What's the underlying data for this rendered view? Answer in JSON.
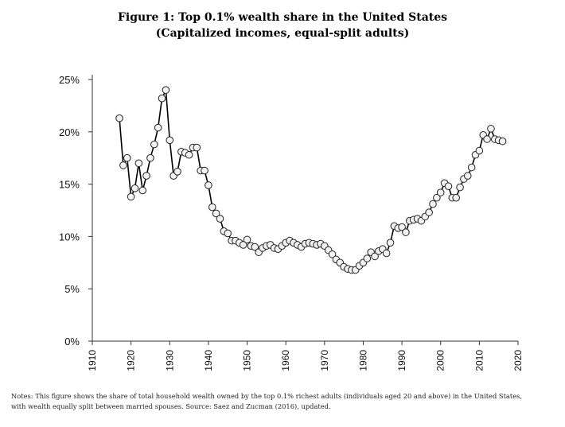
{
  "figure": {
    "title": "Figure 1: Top 0.1% wealth share in the United States",
    "subtitle": "(Capitalized incomes, equal-split adults)",
    "notes_line1": "Notes: This figure shows the share of total household wealth owned by the top 0.1% richest adults (individuals aged 20 and above) in the United States,",
    "notes_line2": "with wealth equally split between married spouses. Source: Saez and Zucman (2016), updated."
  },
  "chart_data": {
    "type": "line",
    "title": "Figure 1: Top 0.1% wealth share in the United States",
    "subtitle": "(Capitalized incomes, equal-split adults)",
    "xlabel": "",
    "ylabel": "",
    "xlim": [
      1910,
      2020
    ],
    "ylim": [
      0,
      25
    ],
    "x_ticks": [
      1910,
      1920,
      1930,
      1940,
      1950,
      1960,
      1970,
      1980,
      1990,
      2000,
      2010,
      2020
    ],
    "y_ticks": [
      0,
      5,
      10,
      15,
      20,
      25
    ],
    "y_tick_labels": [
      "0%",
      "5%",
      "10%",
      "15%",
      "20%",
      "25%"
    ],
    "grid": false,
    "legend": "none",
    "series": [
      {
        "name": "Top 0.1% wealth share",
        "x": [
          1917,
          1918,
          1919,
          1920,
          1921,
          1922,
          1923,
          1924,
          1925,
          1926,
          1927,
          1928,
          1929,
          1930,
          1931,
          1932,
          1933,
          1934,
          1935,
          1936,
          1937,
          1938,
          1939,
          1940,
          1941,
          1942,
          1943,
          1944,
          1945,
          1946,
          1947,
          1948,
          1949,
          1950,
          1951,
          1952,
          1953,
          1954,
          1955,
          1956,
          1957,
          1958,
          1959,
          1960,
          1961,
          1962,
          1963,
          1964,
          1965,
          1966,
          1967,
          1968,
          1969,
          1970,
          1971,
          1972,
          1973,
          1974,
          1975,
          1976,
          1977,
          1978,
          1979,
          1980,
          1981,
          1982,
          1983,
          1984,
          1985,
          1986,
          1987,
          1988,
          1989,
          1990,
          1991,
          1992,
          1993,
          1994,
          1995,
          1996,
          1997,
          1998,
          1999,
          2000,
          2001,
          2002,
          2003,
          2004,
          2005,
          2006,
          2007,
          2008,
          2009,
          2010,
          2011,
          2012,
          2013,
          2014,
          2015,
          2016
        ],
        "values": [
          21.3,
          16.8,
          17.5,
          13.8,
          14.6,
          17.0,
          14.4,
          15.8,
          17.5,
          18.8,
          20.4,
          23.2,
          24.0,
          19.2,
          15.8,
          16.2,
          18.1,
          18.0,
          17.8,
          18.5,
          18.5,
          16.3,
          16.3,
          14.9,
          12.8,
          12.2,
          11.7,
          10.5,
          10.3,
          9.6,
          9.6,
          9.4,
          9.2,
          9.7,
          9.1,
          9.0,
          8.5,
          8.9,
          9.1,
          9.2,
          8.9,
          8.8,
          9.1,
          9.4,
          9.6,
          9.4,
          9.2,
          9.0,
          9.3,
          9.4,
          9.3,
          9.2,
          9.3,
          9.1,
          8.7,
          8.3,
          7.8,
          7.5,
          7.1,
          6.9,
          6.8,
          6.8,
          7.2,
          7.5,
          7.9,
          8.5,
          8.1,
          8.6,
          8.8,
          8.4,
          9.4,
          11.0,
          10.8,
          10.9,
          10.4,
          11.5,
          11.6,
          11.7,
          11.5,
          11.9,
          12.3,
          13.1,
          13.7,
          14.2,
          15.1,
          14.8,
          13.7,
          13.7,
          14.7,
          15.5,
          15.8,
          16.6,
          17.8,
          18.2,
          19.7,
          19.3,
          20.3,
          19.3,
          19.2,
          19.1
        ]
      }
    ]
  }
}
